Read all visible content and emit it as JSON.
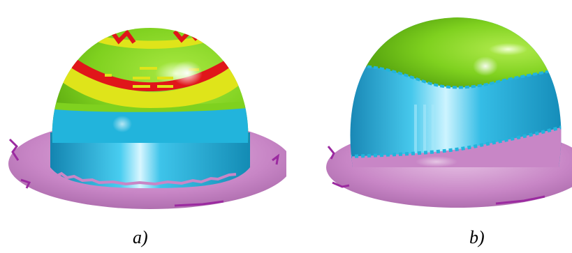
{
  "figure": {
    "panels": [
      {
        "id": "a",
        "caption": "a)"
      },
      {
        "id": "b",
        "caption": "b)"
      }
    ],
    "colors": {
      "flange": "#c886c6",
      "flange_edge": "#9b2aa0",
      "band_blue": "#22b4dc",
      "band_green": "#7fd11f",
      "band_yellow": "#dfe41a",
      "band_red": "#e0161a",
      "highlight": "#ffffff"
    }
  }
}
